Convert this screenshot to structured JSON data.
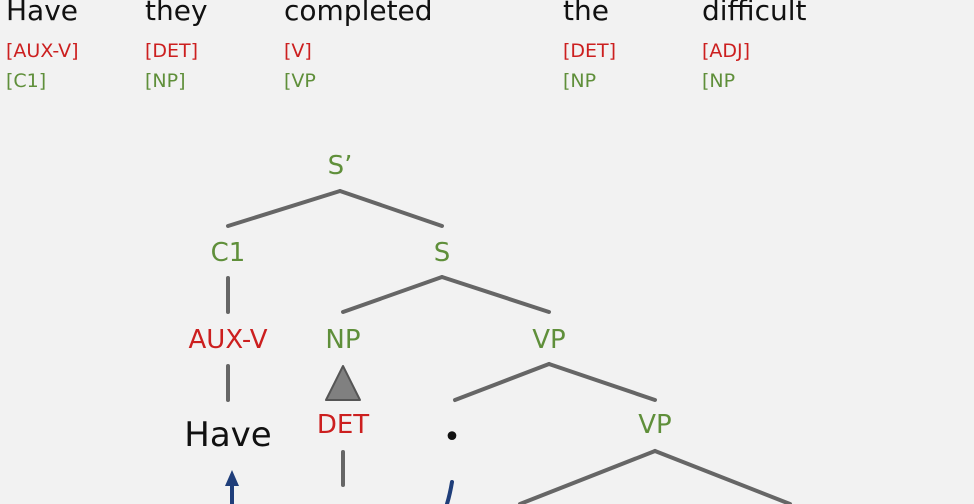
{
  "colors": {
    "background": "#f2f2f2",
    "word": "#111111",
    "pos_tag": "#cc1f1f",
    "phrase_tag": "#5f8f3a",
    "edge": "#666666",
    "triangle_fill": "#808080",
    "arrow": "#1f3e7a"
  },
  "sentence": {
    "words": [
      {
        "text": "Have",
        "pos": "[AUX-V]",
        "phrase": "[C1]"
      },
      {
        "text": "they",
        "pos": "[DET]",
        "phrase": "[NP]"
      },
      {
        "text": "completed",
        "pos": "[V]",
        "phrase": "[VP"
      },
      {
        "text": "the",
        "pos": "[DET]",
        "phrase": "[NP"
      },
      {
        "text": "difficult",
        "pos": "[ADJ]",
        "phrase": "[NP"
      }
    ]
  },
  "tree": {
    "nodes": {
      "s_bar": "S’",
      "c1": "C1",
      "s": "S",
      "aux_v": "AUX-V",
      "np": "NP",
      "vp": "VP",
      "have": "Have",
      "det": "DET",
      "trace": "•",
      "vp2": "VP"
    }
  }
}
